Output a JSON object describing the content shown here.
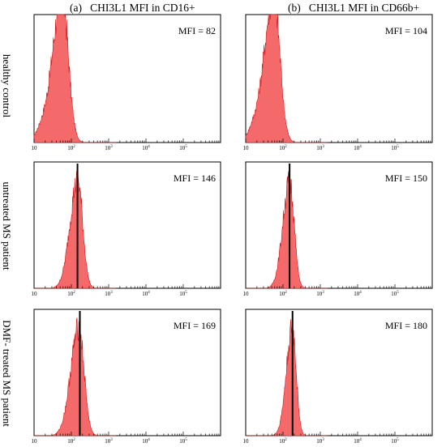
{
  "columns": [
    {
      "letter": "(a)",
      "title": "CHI3L1 MFI in CD16+"
    },
    {
      "letter": "(b)",
      "title": "CHI3L1 MFI in CD66b+"
    }
  ],
  "rows": [
    {
      "label": "healthy control"
    },
    {
      "label": "untreated MS patient"
    },
    {
      "label": "DMF- treated MS patient"
    }
  ],
  "colors": {
    "fill": "#f46a6a",
    "stroke": "#d11a1a",
    "marker": "#000000",
    "axis": "#000000"
  },
  "chart_data": [
    {
      "type": "area",
      "row": "healthy control",
      "column": "CHI3L1 MFI in CD16+",
      "mfi_text": "MFI = 82",
      "mfi": 82,
      "marker_line": false,
      "peak_log10": 1.75,
      "width": 0.22,
      "clipped_top": true,
      "xscale": "log",
      "xlim": [
        10,
        1000000
      ],
      "xticks": [
        "10",
        "10^2",
        "10^3",
        "10^4",
        "10^5"
      ]
    },
    {
      "type": "area",
      "row": "healthy control",
      "column": "CHI3L1 MFI in CD66b+",
      "mfi_text": "MFI = 104",
      "mfi": 104,
      "marker_line": false,
      "peak_log10": 1.75,
      "width": 0.22,
      "clipped_top": true,
      "xscale": "log",
      "xlim": [
        10,
        1000000
      ],
      "xticks": [
        "10",
        "10^2",
        "10^3",
        "10^4",
        "10^5"
      ]
    },
    {
      "type": "area",
      "row": "untreated MS patient",
      "column": "CHI3L1 MFI in CD16+",
      "mfi_text": "MFI = 146",
      "mfi": 146,
      "marker_line": true,
      "peak_log10": 2.17,
      "width": 0.18,
      "clipped_top": false,
      "xscale": "log",
      "xlim": [
        10,
        1000000
      ],
      "xticks": [
        "10",
        "10^2",
        "10^3",
        "10^4",
        "10^5"
      ]
    },
    {
      "type": "area",
      "row": "untreated MS patient",
      "column": "CHI3L1 MFI in CD66b+",
      "mfi_text": "MFI = 150",
      "mfi": 150,
      "marker_line": true,
      "peak_log10": 2.18,
      "width": 0.16,
      "clipped_top": false,
      "xscale": "log",
      "xlim": [
        10,
        1000000
      ],
      "xticks": [
        "10",
        "10^2",
        "10^3",
        "10^4",
        "10^5"
      ]
    },
    {
      "type": "area",
      "row": "DMF- treated MS patient",
      "column": "CHI3L1 MFI in CD16+",
      "mfi_text": "MFI = 169",
      "mfi": 169,
      "marker_line": true,
      "peak_log10": 2.2,
      "width": 0.19,
      "clipped_top": false,
      "xscale": "log",
      "xlim": [
        10,
        1000000
      ],
      "xticks": [
        "10",
        "10^2",
        "10^3",
        "10^4",
        "10^5"
      ]
    },
    {
      "type": "area",
      "row": "DMF- treated MS patient",
      "column": "CHI3L1 MFI in CD66b+",
      "mfi_text": "MFI = 180",
      "mfi": 180,
      "marker_line": true,
      "peak_log10": 2.25,
      "width": 0.14,
      "clipped_top": false,
      "xscale": "log",
      "xlim": [
        10,
        1000000
      ],
      "xticks": [
        "10",
        "10^2",
        "10^3",
        "10^4",
        "10^5"
      ]
    }
  ]
}
